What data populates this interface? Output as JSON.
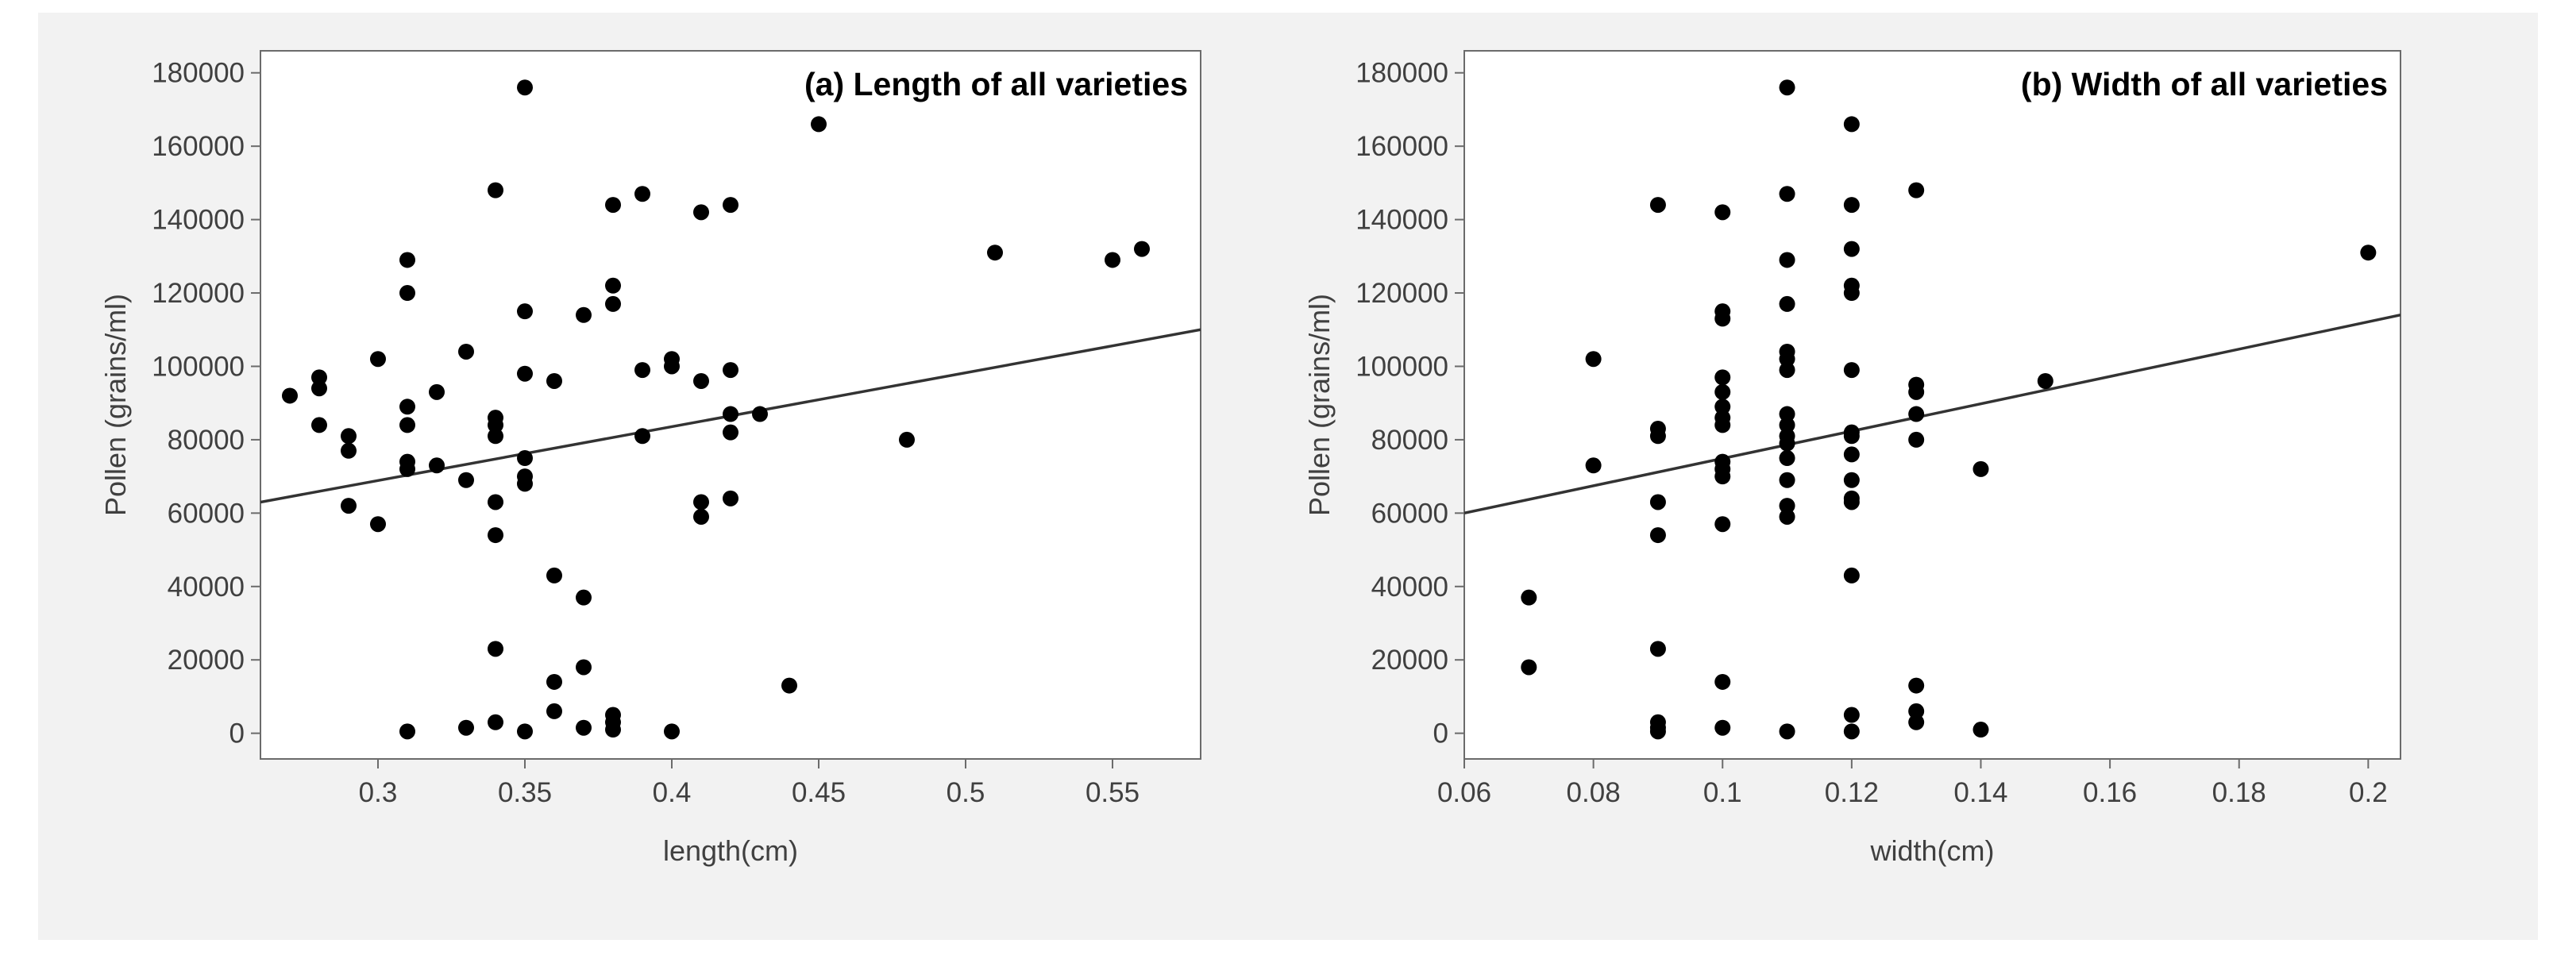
{
  "chart_data": [
    {
      "type": "scatter",
      "title": "(a) Length of all varieties",
      "xlabel": "length(cm)",
      "ylabel": "Pollen (grains/ml)",
      "xlim": [
        0.26,
        0.58
      ],
      "ylim": [
        -7000,
        186000
      ],
      "xticks": [
        0.3,
        0.35,
        0.4,
        0.45,
        0.5,
        0.55
      ],
      "xtick_labels": [
        "0.3",
        "0.35",
        "0.4",
        "0.45",
        "0.5",
        "0.55"
      ],
      "yticks": [
        0,
        20000,
        40000,
        60000,
        80000,
        100000,
        120000,
        140000,
        160000,
        180000
      ],
      "ytick_labels": [
        "0",
        "20000",
        "40000",
        "60000",
        "80000",
        "100000",
        "120000",
        "140000",
        "160000",
        "180000"
      ],
      "grid": false,
      "legend": "none",
      "fit_line": {
        "x": [
          0.26,
          0.58
        ],
        "y": [
          63000,
          110000
        ]
      },
      "points": [
        {
          "x": 0.27,
          "y": 92000
        },
        {
          "x": 0.28,
          "y": 97000
        },
        {
          "x": 0.28,
          "y": 94000
        },
        {
          "x": 0.28,
          "y": 84000
        },
        {
          "x": 0.29,
          "y": 81000
        },
        {
          "x": 0.29,
          "y": 77000
        },
        {
          "x": 0.29,
          "y": 62000
        },
        {
          "x": 0.3,
          "y": 102000
        },
        {
          "x": 0.3,
          "y": 57000
        },
        {
          "x": 0.31,
          "y": 129000
        },
        {
          "x": 0.31,
          "y": 120000
        },
        {
          "x": 0.31,
          "y": 89000
        },
        {
          "x": 0.31,
          "y": 84000
        },
        {
          "x": 0.31,
          "y": 74000
        },
        {
          "x": 0.31,
          "y": 72000
        },
        {
          "x": 0.31,
          "y": 500
        },
        {
          "x": 0.32,
          "y": 93000
        },
        {
          "x": 0.32,
          "y": 73000
        },
        {
          "x": 0.33,
          "y": 104000
        },
        {
          "x": 0.33,
          "y": 69000
        },
        {
          "x": 0.33,
          "y": 1500
        },
        {
          "x": 0.34,
          "y": 148000
        },
        {
          "x": 0.34,
          "y": 86000
        },
        {
          "x": 0.34,
          "y": 84000
        },
        {
          "x": 0.34,
          "y": 81000
        },
        {
          "x": 0.34,
          "y": 63000
        },
        {
          "x": 0.34,
          "y": 54000
        },
        {
          "x": 0.34,
          "y": 23000
        },
        {
          "x": 0.34,
          "y": 3000
        },
        {
          "x": 0.35,
          "y": 176000
        },
        {
          "x": 0.35,
          "y": 115000
        },
        {
          "x": 0.35,
          "y": 98000
        },
        {
          "x": 0.35,
          "y": 75000
        },
        {
          "x": 0.35,
          "y": 70000
        },
        {
          "x": 0.35,
          "y": 68000
        },
        {
          "x": 0.35,
          "y": 500
        },
        {
          "x": 0.36,
          "y": 96000
        },
        {
          "x": 0.36,
          "y": 43000
        },
        {
          "x": 0.36,
          "y": 14000
        },
        {
          "x": 0.36,
          "y": 6000
        },
        {
          "x": 0.37,
          "y": 114000
        },
        {
          "x": 0.37,
          "y": 37000
        },
        {
          "x": 0.37,
          "y": 18000
        },
        {
          "x": 0.37,
          "y": 1500
        },
        {
          "x": 0.38,
          "y": 144000
        },
        {
          "x": 0.38,
          "y": 122000
        },
        {
          "x": 0.38,
          "y": 117000
        },
        {
          "x": 0.38,
          "y": 5000
        },
        {
          "x": 0.38,
          "y": 3000
        },
        {
          "x": 0.38,
          "y": 1000
        },
        {
          "x": 0.39,
          "y": 147000
        },
        {
          "x": 0.39,
          "y": 99000
        },
        {
          "x": 0.39,
          "y": 81000
        },
        {
          "x": 0.4,
          "y": 102000
        },
        {
          "x": 0.4,
          "y": 100000
        },
        {
          "x": 0.4,
          "y": 500
        },
        {
          "x": 0.41,
          "y": 142000
        },
        {
          "x": 0.41,
          "y": 96000
        },
        {
          "x": 0.41,
          "y": 63000
        },
        {
          "x": 0.41,
          "y": 59000
        },
        {
          "x": 0.42,
          "y": 144000
        },
        {
          "x": 0.42,
          "y": 99000
        },
        {
          "x": 0.42,
          "y": 87000
        },
        {
          "x": 0.42,
          "y": 82000
        },
        {
          "x": 0.42,
          "y": 64000
        },
        {
          "x": 0.43,
          "y": 87000
        },
        {
          "x": 0.44,
          "y": 13000
        },
        {
          "x": 0.45,
          "y": 166000
        },
        {
          "x": 0.48,
          "y": 80000
        },
        {
          "x": 0.51,
          "y": 131000
        },
        {
          "x": 0.55,
          "y": 129000
        },
        {
          "x": 0.56,
          "y": 132000
        }
      ]
    },
    {
      "type": "scatter",
      "title": "(b) Width of all varieties",
      "xlabel": "width(cm)",
      "ylabel": "Pollen (grains/ml)",
      "xlim": [
        0.06,
        0.205
      ],
      "ylim": [
        -7000,
        186000
      ],
      "xticks": [
        0.06,
        0.08,
        0.1,
        0.12,
        0.14,
        0.16,
        0.18,
        0.2
      ],
      "xtick_labels": [
        "0.06",
        "0.08",
        "0.1",
        "0.12",
        "0.14",
        "0.16",
        "0.18",
        "0.2"
      ],
      "yticks": [
        0,
        20000,
        40000,
        60000,
        80000,
        100000,
        120000,
        140000,
        160000,
        180000
      ],
      "ytick_labels": [
        "0",
        "20000",
        "40000",
        "60000",
        "80000",
        "100000",
        "120000",
        "140000",
        "160000",
        "180000"
      ],
      "grid": false,
      "legend": "none",
      "fit_line": {
        "x": [
          0.06,
          0.205
        ],
        "y": [
          60000,
          114000
        ]
      },
      "points": [
        {
          "x": 0.07,
          "y": 37000
        },
        {
          "x": 0.07,
          "y": 18000
        },
        {
          "x": 0.08,
          "y": 102000
        },
        {
          "x": 0.08,
          "y": 73000
        },
        {
          "x": 0.09,
          "y": 144000
        },
        {
          "x": 0.09,
          "y": 83000
        },
        {
          "x": 0.09,
          "y": 81000
        },
        {
          "x": 0.09,
          "y": 63000
        },
        {
          "x": 0.09,
          "y": 54000
        },
        {
          "x": 0.09,
          "y": 23000
        },
        {
          "x": 0.09,
          "y": 3000
        },
        {
          "x": 0.09,
          "y": 1500
        },
        {
          "x": 0.09,
          "y": 500
        },
        {
          "x": 0.1,
          "y": 142000
        },
        {
          "x": 0.1,
          "y": 115000
        },
        {
          "x": 0.1,
          "y": 113000
        },
        {
          "x": 0.1,
          "y": 97000
        },
        {
          "x": 0.1,
          "y": 93000
        },
        {
          "x": 0.1,
          "y": 89000
        },
        {
          "x": 0.1,
          "y": 86000
        },
        {
          "x": 0.1,
          "y": 84000
        },
        {
          "x": 0.1,
          "y": 74000
        },
        {
          "x": 0.1,
          "y": 72000
        },
        {
          "x": 0.1,
          "y": 70000
        },
        {
          "x": 0.1,
          "y": 57000
        },
        {
          "x": 0.1,
          "y": 14000
        },
        {
          "x": 0.1,
          "y": 1500
        },
        {
          "x": 0.11,
          "y": 176000
        },
        {
          "x": 0.11,
          "y": 147000
        },
        {
          "x": 0.11,
          "y": 129000
        },
        {
          "x": 0.11,
          "y": 117000
        },
        {
          "x": 0.11,
          "y": 104000
        },
        {
          "x": 0.11,
          "y": 102000
        },
        {
          "x": 0.11,
          "y": 99000
        },
        {
          "x": 0.11,
          "y": 87000
        },
        {
          "x": 0.11,
          "y": 84000
        },
        {
          "x": 0.11,
          "y": 81000
        },
        {
          "x": 0.11,
          "y": 79000
        },
        {
          "x": 0.11,
          "y": 75000
        },
        {
          "x": 0.11,
          "y": 69000
        },
        {
          "x": 0.11,
          "y": 62000
        },
        {
          "x": 0.11,
          "y": 59000
        },
        {
          "x": 0.11,
          "y": 500
        },
        {
          "x": 0.12,
          "y": 166000
        },
        {
          "x": 0.12,
          "y": 144000
        },
        {
          "x": 0.12,
          "y": 132000
        },
        {
          "x": 0.12,
          "y": 122000
        },
        {
          "x": 0.12,
          "y": 120000
        },
        {
          "x": 0.12,
          "y": 99000
        },
        {
          "x": 0.12,
          "y": 82000
        },
        {
          "x": 0.12,
          "y": 81000
        },
        {
          "x": 0.12,
          "y": 76000
        },
        {
          "x": 0.12,
          "y": 69000
        },
        {
          "x": 0.12,
          "y": 64000
        },
        {
          "x": 0.12,
          "y": 63000
        },
        {
          "x": 0.12,
          "y": 43000
        },
        {
          "x": 0.12,
          "y": 5000
        },
        {
          "x": 0.12,
          "y": 500
        },
        {
          "x": 0.13,
          "y": 148000
        },
        {
          "x": 0.13,
          "y": 95000
        },
        {
          "x": 0.13,
          "y": 93000
        },
        {
          "x": 0.13,
          "y": 87000
        },
        {
          "x": 0.13,
          "y": 80000
        },
        {
          "x": 0.13,
          "y": 13000
        },
        {
          "x": 0.13,
          "y": 6000
        },
        {
          "x": 0.13,
          "y": 3000
        },
        {
          "x": 0.14,
          "y": 72000
        },
        {
          "x": 0.14,
          "y": 1000
        },
        {
          "x": 0.15,
          "y": 96000
        },
        {
          "x": 0.2,
          "y": 131000
        }
      ]
    }
  ]
}
